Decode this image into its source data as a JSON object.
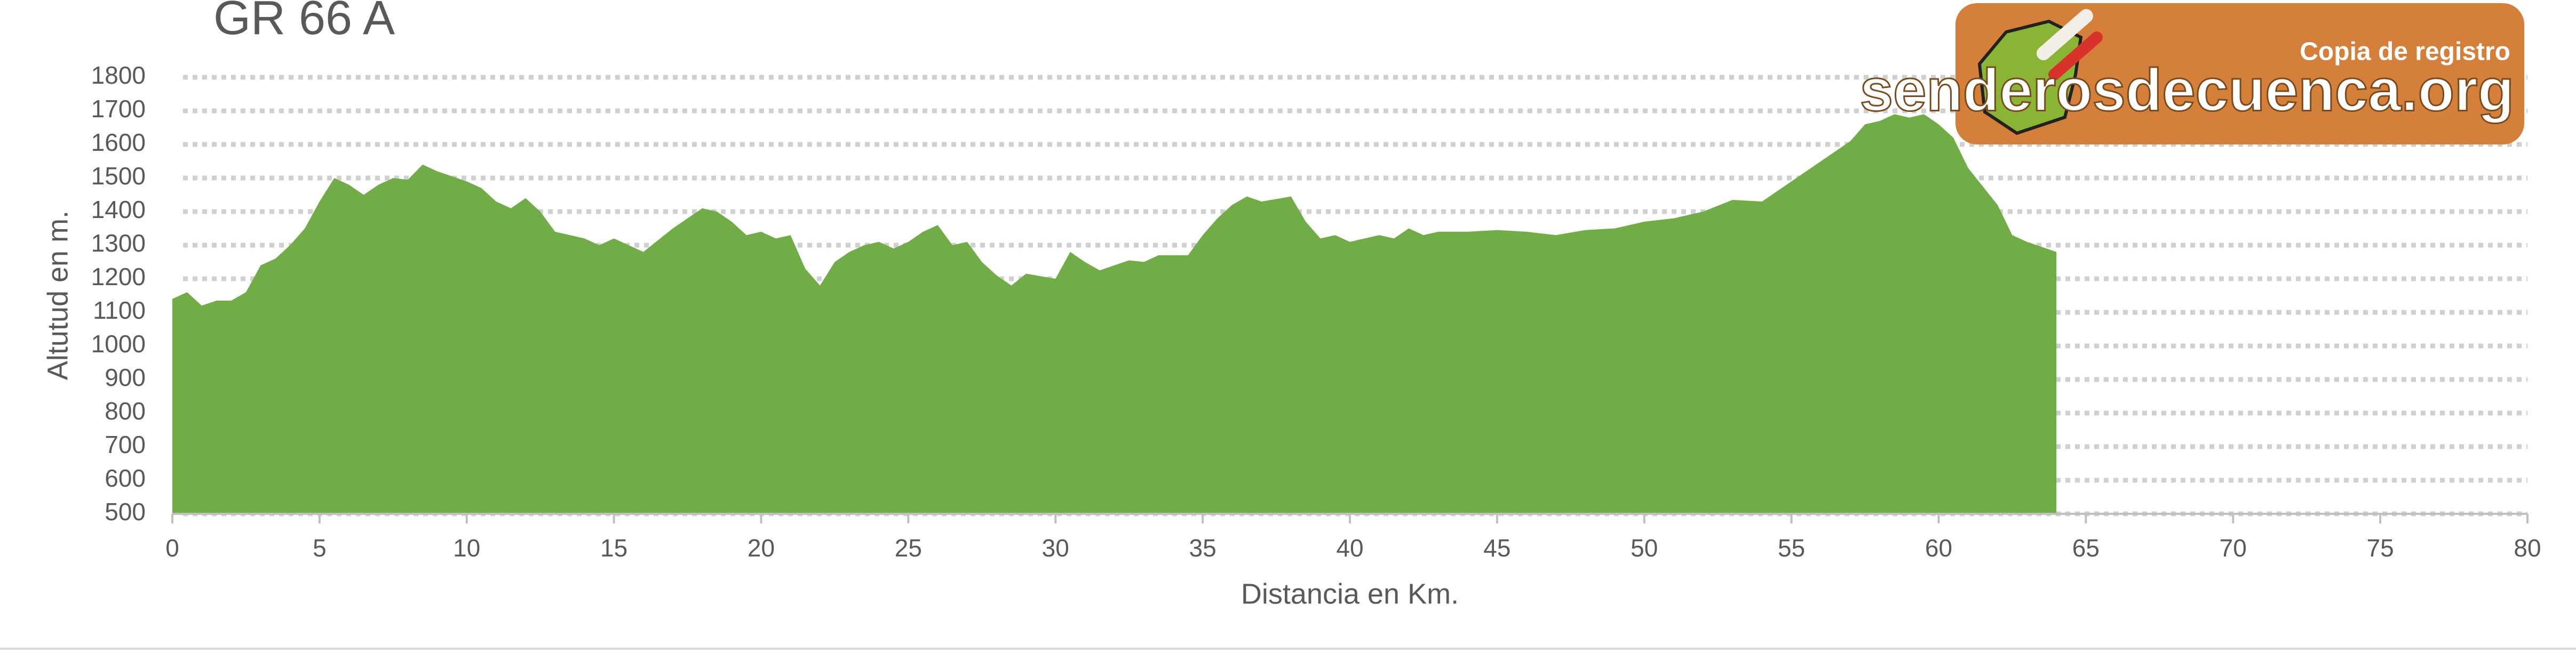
{
  "chart_data": {
    "type": "area",
    "title": "GR 66 A",
    "x_label": "Distancia en Km.",
    "y_label": "Altutud en m.",
    "logo_caption": "Copia de registro",
    "logo_text": "senderosdecuenca.org",
    "color": "#70ad47",
    "grid": true,
    "xlim": [
      0,
      80
    ],
    "xticks": [
      0,
      5,
      10,
      15,
      20,
      25,
      30,
      35,
      40,
      45,
      50,
      55,
      60,
      65,
      70,
      75,
      80
    ],
    "ylim": [
      500,
      1800
    ],
    "yticks": [
      500,
      600,
      700,
      800,
      900,
      1000,
      1100,
      1200,
      1300,
      1400,
      1500,
      1600,
      1700,
      1800
    ],
    "x": [
      0,
      0.5,
      1,
      1.5,
      2,
      2.5,
      3,
      3.5,
      4,
      4.5,
      5,
      5.5,
      6,
      6.5,
      7,
      7.5,
      8,
      8.5,
      9,
      10,
      10.5,
      11,
      11.5,
      12,
      12.5,
      13,
      14,
      14.5,
      15,
      15.5,
      16,
      17,
      18,
      18.5,
      19,
      19.5,
      20,
      20.5,
      21,
      21.5,
      22,
      22.5,
      23,
      23.5,
      24,
      24.5,
      25,
      25.5,
      26,
      26.5,
      27,
      27.5,
      28,
      28.5,
      29,
      30,
      30.5,
      31,
      31.5,
      32,
      32.5,
      33,
      33.5,
      34.5,
      35,
      35.5,
      36,
      36.5,
      37,
      38,
      38.5,
      39,
      39.5,
      40,
      41,
      41.5,
      42,
      42.5,
      43,
      44,
      45,
      46,
      47,
      48,
      49,
      50,
      51,
      52,
      53,
      54,
      55,
      56,
      57,
      57.5,
      58,
      58.5,
      59,
      59.5,
      60,
      60.5,
      61,
      62,
      62.5,
      63,
      64
    ],
    "values": [
      1140,
      1160,
      1120,
      1135,
      1135,
      1160,
      1240,
      1260,
      1300,
      1350,
      1430,
      1500,
      1480,
      1450,
      1480,
      1500,
      1495,
      1540,
      1520,
      1490,
      1470,
      1430,
      1410,
      1440,
      1400,
      1340,
      1320,
      1300,
      1320,
      1300,
      1280,
      1350,
      1410,
      1400,
      1370,
      1330,
      1340,
      1320,
      1330,
      1230,
      1180,
      1250,
      1280,
      1300,
      1310,
      1290,
      1310,
      1340,
      1360,
      1300,
      1310,
      1250,
      1210,
      1180,
      1215,
      1200,
      1280,
      1250,
      1225,
      1240,
      1255,
      1250,
      1270,
      1270,
      1330,
      1380,
      1420,
      1445,
      1430,
      1445,
      1370,
      1320,
      1330,
      1310,
      1330,
      1320,
      1350,
      1330,
      1340,
      1340,
      1345,
      1340,
      1330,
      1345,
      1350,
      1370,
      1380,
      1400,
      1435,
      1430,
      1490,
      1550,
      1610,
      1660,
      1670,
      1690,
      1680,
      1690,
      1660,
      1620,
      1530,
      1420,
      1330,
      1310,
      1280
    ]
  }
}
